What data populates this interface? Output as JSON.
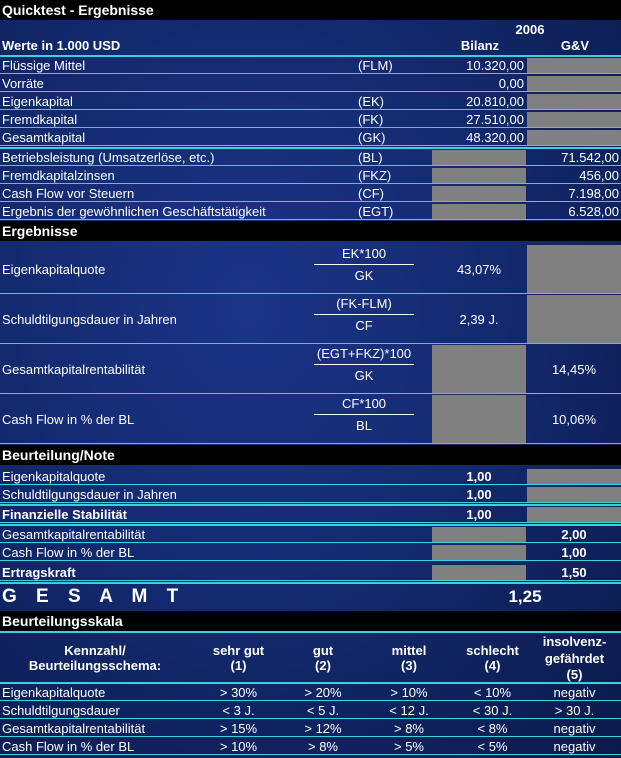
{
  "title": "Quicktest - Ergebnisse",
  "header": {
    "year": "2006",
    "units": "Werte in 1.000 USD",
    "col_bilanz": "Bilanz",
    "col_guv": "G&V"
  },
  "input_rows": [
    {
      "label": "Flüssige Mittel",
      "abbr": "(FLM)",
      "bilanz": "10.320,00",
      "guv": ""
    },
    {
      "label": "Vorräte",
      "abbr": "",
      "bilanz": "0,00",
      "guv": ""
    },
    {
      "label": "Eigenkapital",
      "abbr": "(EK)",
      "bilanz": "20.810,00",
      "guv": ""
    },
    {
      "label": "Fremdkapital",
      "abbr": "(FK)",
      "bilanz": "27.510,00",
      "guv": ""
    },
    {
      "label": "Gesamtkapital",
      "abbr": "(GK)",
      "bilanz": "48.320,00",
      "guv": ""
    },
    {
      "label": "Betriebsleistung (Umsatzerlöse, etc.)",
      "abbr": "(BL)",
      "bilanz": "",
      "guv": "71.542,00"
    },
    {
      "label": "Fremdkapitalzinsen",
      "abbr": "(FKZ)",
      "bilanz": "",
      "guv": "456,00"
    },
    {
      "label": "Cash Flow vor Steuern",
      "abbr": "(CF)",
      "bilanz": "",
      "guv": "7.198,00"
    },
    {
      "label": "Ergebnis der gewöhnlichen Geschäftstätigkeit",
      "abbr": "(EGT)",
      "bilanz": "",
      "guv": "6.528,00"
    }
  ],
  "ergebnisse": {
    "title": "Ergebnisse",
    "rows": [
      {
        "label": "Eigenkapitalquote",
        "numerator": "EK*100",
        "denominator": "GK",
        "bilanz": "43,07%",
        "guv": ""
      },
      {
        "label": "Schuldtilgungsdauer in Jahren",
        "numerator": "(FK-FLM)",
        "denominator": "CF",
        "bilanz": "2,39 J.",
        "guv": ""
      },
      {
        "label": "Gesamtkapitalrentabilität",
        "numerator": "(EGT+FKZ)*100",
        "denominator": "GK",
        "bilanz": "",
        "guv": "14,45%"
      },
      {
        "label": "Cash Flow in % der BL",
        "numerator": "CF*100",
        "denominator": "BL",
        "bilanz": "",
        "guv": "10,06%"
      }
    ]
  },
  "beurteilung": {
    "title": "Beurteilung/Note",
    "rows": [
      {
        "label": "Eigenkapitalquote",
        "bilanz": "1,00",
        "guv": ""
      },
      {
        "label": "Schuldtilgungsdauer in Jahren",
        "bilanz": "1,00",
        "guv": ""
      },
      {
        "label": "Finanzielle Stabilität",
        "bilanz": "1,00",
        "guv": ""
      },
      {
        "label": "Gesamtkapitalrentabilität",
        "bilanz": "",
        "guv": "2,00"
      },
      {
        "label": "Cash Flow in % der BL",
        "bilanz": "",
        "guv": "1,00"
      },
      {
        "label": "Ertragskraft",
        "bilanz": "",
        "guv": "1,50"
      }
    ]
  },
  "gesamt": {
    "label": "G E S A M T",
    "value": "1,25"
  },
  "skala": {
    "title": "Beurteilungsskala",
    "head_label_1": "Kennzahl/",
    "head_label_2": "Beurteilungsschema:",
    "grades": [
      {
        "name": "sehr gut",
        "name2": "",
        "num": "(1)"
      },
      {
        "name": "gut",
        "name2": "",
        "num": "(2)"
      },
      {
        "name": "mittel",
        "name2": "",
        "num": "(3)"
      },
      {
        "name": "schlecht",
        "name2": "",
        "num": "(4)"
      },
      {
        "name": "insolvenz-",
        "name2": "gefährdet",
        "num": "(5)"
      }
    ],
    "rows": [
      {
        "label": "Eigenkapitalquote",
        "values": [
          "> 30%",
          "> 20%",
          "> 10%",
          "< 10%",
          "negativ"
        ]
      },
      {
        "label": "Schuldtilgungsdauer",
        "values": [
          "< 3 J.",
          "< 5 J.",
          "< 12 J.",
          "< 30 J.",
          "> 30 J."
        ]
      },
      {
        "label": "Gesamtkapitalrentabilität",
        "values": [
          "> 15%",
          "> 12%",
          "> 8%",
          "< 8%",
          "negativ"
        ]
      },
      {
        "label": "Cash Flow in % der BL",
        "values": [
          "> 10%",
          "> 8%",
          "> 5%",
          "< 5%",
          "negativ"
        ]
      }
    ]
  },
  "colors": {
    "accent_line": "#3bd0dc",
    "gray_cell": "#808080",
    "header_bg": "#000000"
  }
}
